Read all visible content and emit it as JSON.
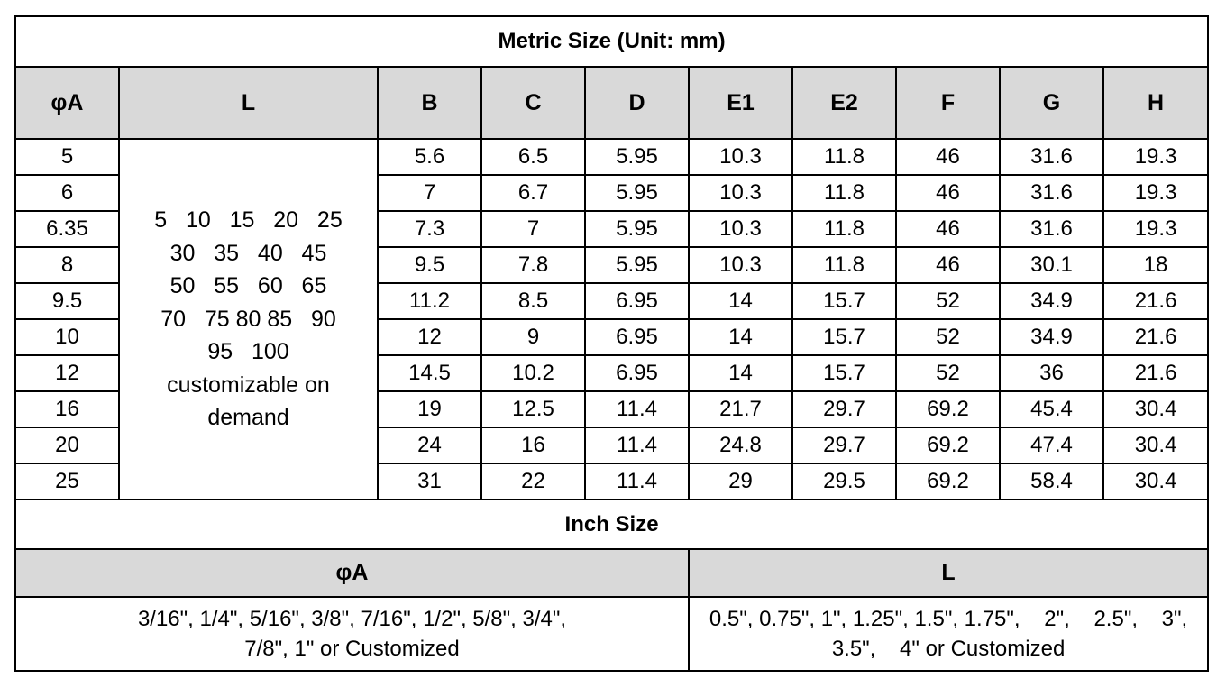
{
  "metric": {
    "title": "Metric Size (Unit: mm)",
    "headers": [
      "φA",
      "L",
      "B",
      "C",
      "D",
      "E1",
      "E2",
      "F",
      "G",
      "H"
    ],
    "l_lines": [
      "5   10   15   20   25",
      "30   35   40   45",
      "50   55   60   65",
      "70   75 80 85   90",
      "95   100",
      "customizable on",
      "demand"
    ],
    "rows": [
      [
        "5",
        "5.6",
        "6.5",
        "5.95",
        "10.3",
        "11.8",
        "46",
        "31.6",
        "19.3"
      ],
      [
        "6",
        "7",
        "6.7",
        "5.95",
        "10.3",
        "11.8",
        "46",
        "31.6",
        "19.3"
      ],
      [
        "6.35",
        "7.3",
        "7",
        "5.95",
        "10.3",
        "11.8",
        "46",
        "31.6",
        "19.3"
      ],
      [
        "8",
        "9.5",
        "7.8",
        "5.95",
        "10.3",
        "11.8",
        "46",
        "30.1",
        "18"
      ],
      [
        "9.5",
        "11.2",
        "8.5",
        "6.95",
        "14",
        "15.7",
        "52",
        "34.9",
        "21.6"
      ],
      [
        "10",
        "12",
        "9",
        "6.95",
        "14",
        "15.7",
        "52",
        "34.9",
        "21.6"
      ],
      [
        "12",
        "14.5",
        "10.2",
        "6.95",
        "14",
        "15.7",
        "52",
        "36",
        "21.6"
      ],
      [
        "16",
        "19",
        "12.5",
        "11.4",
        "21.7",
        "29.7",
        "69.2",
        "45.4",
        "30.4"
      ],
      [
        "20",
        "24",
        "16",
        "11.4",
        "24.8",
        "29.7",
        "69.2",
        "47.4",
        "30.4"
      ],
      [
        "25",
        "31",
        "22",
        "11.4",
        "29",
        "29.5",
        "69.2",
        "58.4",
        "30.4"
      ]
    ]
  },
  "inch": {
    "title": "Inch Size",
    "headers": [
      "φA",
      "L"
    ],
    "phiA_lines": [
      "3/16\", 1/4\", 5/16\", 3/8\", 7/16\", 1/2\", 5/8\", 3/4\",",
      "7/8\", 1\" or Customized"
    ],
    "L_lines": [
      "0.5\", 0.75\", 1\", 1.25\", 1.5\", 1.75\",    2\",    2.5\",    3\",",
      "3.5\",    4\" or Customized"
    ]
  }
}
